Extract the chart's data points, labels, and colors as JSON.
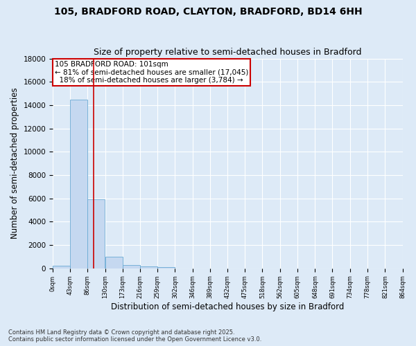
{
  "title1": "105, BRADFORD ROAD, CLAYTON, BRADFORD, BD14 6HH",
  "title2": "Size of property relative to semi-detached houses in Bradford",
  "xlabel": "Distribution of semi-detached houses by size in Bradford",
  "ylabel": "Number of semi-detached properties",
  "bin_edges": [
    0,
    43,
    86,
    130,
    173,
    216,
    259,
    302,
    346,
    389,
    432,
    475,
    518,
    562,
    605,
    648,
    691,
    734,
    778,
    821,
    864
  ],
  "bin_labels": [
    "0sqm",
    "43sqm",
    "86sqm",
    "130sqm",
    "173sqm",
    "216sqm",
    "259sqm",
    "302sqm",
    "346sqm",
    "389sqm",
    "432sqm",
    "475sqm",
    "518sqm",
    "562sqm",
    "605sqm",
    "648sqm",
    "691sqm",
    "734sqm",
    "778sqm",
    "821sqm",
    "864sqm"
  ],
  "bar_heights": [
    200,
    14500,
    5900,
    1000,
    300,
    150,
    80,
    0,
    0,
    0,
    0,
    0,
    0,
    0,
    0,
    0,
    0,
    0,
    0,
    0
  ],
  "bar_color": "#c5d8f0",
  "bar_edge_color": "#6aaad4",
  "property_size": 101,
  "vline_color": "#cc0000",
  "annotation_text": "105 BRADFORD ROAD: 101sqm\n← 81% of semi-detached houses are smaller (17,045)\n  18% of semi-detached houses are larger (3,784) →",
  "annotation_box_color": "#ffffff",
  "annotation_box_edge": "#cc0000",
  "ylim": [
    0,
    18000
  ],
  "yticks": [
    0,
    2000,
    4000,
    6000,
    8000,
    10000,
    12000,
    14000,
    16000,
    18000
  ],
  "bg_color": "#ddeaf7",
  "footnote": "Contains HM Land Registry data © Crown copyright and database right 2025.\nContains public sector information licensed under the Open Government Licence v3.0.",
  "title1_fontsize": 10,
  "title2_fontsize": 9,
  "xlabel_fontsize": 8.5,
  "ylabel_fontsize": 8.5,
  "annot_fontsize": 7.5
}
